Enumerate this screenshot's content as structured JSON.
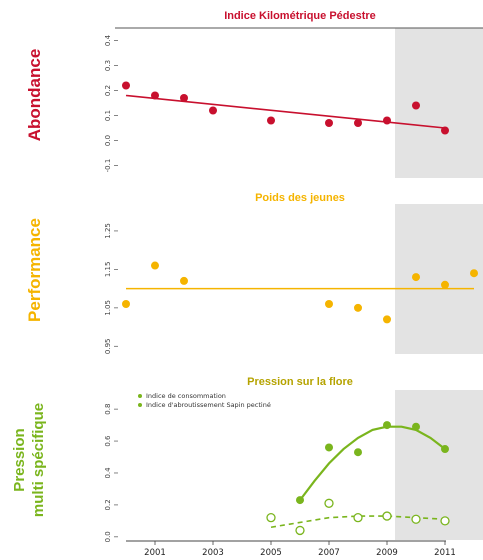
{
  "row_labels": {
    "abondance": "Abondance",
    "performance": "Performance",
    "pression_line1": "Pression",
    "pression_line2": "multi spécifique"
  },
  "colors": {
    "abondance": "#c8102e",
    "performance": "#f5b400",
    "pression": "#7ab51d",
    "shade": "#e3e3e3",
    "pression_title": "#b5a300"
  },
  "x_axis": {
    "range": [
      2000,
      2012
    ],
    "shaded_from": 2009.5,
    "ticks": [
      2001,
      2003,
      2005,
      2007,
      2009,
      2011
    ],
    "tick_labels": [
      "2001",
      "2003",
      "2005",
      "2007",
      "2009",
      "2011"
    ]
  },
  "chart_data": [
    {
      "type": "scatter",
      "title": "Indice Kilométrique Pédestre",
      "ylim": [
        -0.15,
        0.45
      ],
      "yticks": [
        -0.1,
        0.0,
        0.1,
        0.2,
        0.3,
        0.4
      ],
      "ytick_labels": [
        "-0.1",
        "0.0",
        "0.1",
        "0.2",
        "0.3",
        "0.4"
      ],
      "series": [
        {
          "x": [
            2000,
            2001,
            2002,
            2003,
            2005,
            2007,
            2008,
            2009,
            2010,
            2011
          ],
          "y": [
            0.22,
            0.18,
            0.17,
            0.12,
            0.08,
            0.07,
            0.07,
            0.08,
            0.14,
            0.04
          ]
        }
      ],
      "trend": {
        "type": "linear",
        "x": [
          2000,
          2011
        ],
        "y": [
          0.18,
          0.05
        ]
      }
    },
    {
      "type": "scatter",
      "title": "Poids des jeunes",
      "ylim": [
        0.93,
        1.32
      ],
      "yticks": [
        0.95,
        1.05,
        1.15,
        1.25
      ],
      "ytick_labels": [
        "0.95",
        "1.05",
        "1.15",
        "1.25"
      ],
      "series": [
        {
          "x": [
            2000,
            2001,
            2002,
            2007,
            2008,
            2009,
            2010,
            2011
          ],
          "y": [
            1.06,
            1.16,
            1.12,
            1.06,
            1.05,
            1.02,
            1.13,
            1.11
          ],
          "y_last": 1.14
        }
      ],
      "trend": {
        "type": "constant",
        "x": [
          2000,
          2012
        ],
        "y": [
          1.1,
          1.1
        ]
      }
    },
    {
      "type": "scatter",
      "title": "Pression sur la flore",
      "ylim": [
        -0.02,
        0.92
      ],
      "yticks": [
        0.0,
        0.2,
        0.4,
        0.6,
        0.8
      ],
      "ytick_labels": [
        "0.0",
        "0.2",
        "0.4",
        "0.6",
        "0.8"
      ],
      "legend": {
        "position": "top-left",
        "entries": [
          "Indice de consommation",
          "Indice d'abroutissement Sapin pectiné"
        ]
      },
      "series": [
        {
          "name": "Indice de consommation",
          "marker": "filled",
          "x": [
            2006,
            2007,
            2008,
            2009,
            2010,
            2011
          ],
          "y": [
            0.23,
            0.56,
            0.53,
            0.7,
            0.69,
            0.55
          ],
          "curve": {
            "x": [
              2006,
              2006.5,
              2007,
              2007.5,
              2008,
              2008.5,
              2009,
              2009.5,
              2010,
              2010.5,
              2011
            ],
            "y": [
              0.23,
              0.35,
              0.46,
              0.55,
              0.62,
              0.67,
              0.69,
              0.69,
              0.67,
              0.62,
              0.55
            ]
          }
        },
        {
          "name": "Indice d'abroutissement Sapin pectiné",
          "marker": "open",
          "x": [
            2005,
            2006,
            2007,
            2008,
            2009,
            2010,
            2011
          ],
          "y": [
            0.12,
            0.04,
            0.21,
            0.12,
            0.13,
            0.11,
            0.1
          ],
          "curve": {
            "x": [
              2005,
              2006,
              2007,
              2008,
              2009,
              2010,
              2011
            ],
            "y": [
              0.06,
              0.09,
              0.12,
              0.13,
              0.13,
              0.12,
              0.11
            ]
          }
        }
      ]
    }
  ]
}
